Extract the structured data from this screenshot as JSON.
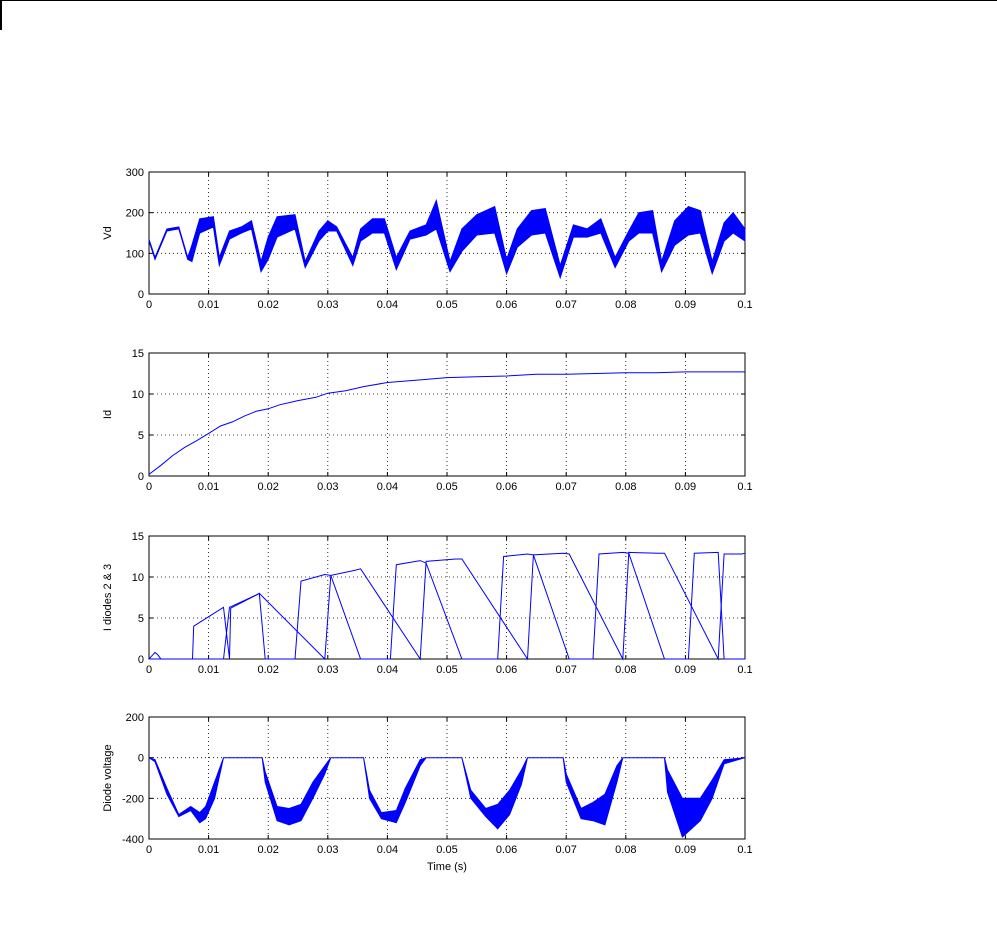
{
  "figure": {
    "background": "#ffffff",
    "line_color": "#0000ff",
    "grid": true
  },
  "chart_data": [
    {
      "type": "line",
      "ylabel": "Vd",
      "xlabel": "",
      "xlim": [
        0,
        0.1
      ],
      "ylim": [
        0,
        300
      ],
      "xticks": [
        "0",
        "0.01",
        "0.02",
        "0.03",
        "0.04",
        "0.05",
        "0.06",
        "0.07",
        "0.08",
        "0.09",
        "0.1"
      ],
      "yticks": [
        "0",
        "100",
        "200",
        "300"
      ],
      "series": [
        {
          "x": [
            0,
            0.001,
            0.003,
            0.005,
            0.0065,
            0.0072,
            0.0085,
            0.0108,
            0.0118,
            0.0135,
            0.0155,
            0.0172,
            0.0188,
            0.02,
            0.0215,
            0.0245,
            0.0262,
            0.0285,
            0.03,
            0.0315,
            0.0342,
            0.0355,
            0.0375,
            0.0395,
            0.0415,
            0.0438,
            0.0465,
            0.0482,
            0.0505,
            0.0525,
            0.055,
            0.058,
            0.06,
            0.0618,
            0.0642,
            0.0665,
            0.069,
            0.0712,
            0.0735,
            0.0758,
            0.0782,
            0.0805,
            0.0822,
            0.0845,
            0.086,
            0.0882,
            0.0905,
            0.0925,
            0.0945,
            0.0965,
            0.098,
            0.1
          ],
          "ymin": [
            130,
            85,
            155,
            160,
            85,
            80,
            150,
            165,
            70,
            135,
            150,
            160,
            55,
            85,
            140,
            160,
            65,
            130,
            155,
            155,
            70,
            130,
            150,
            150,
            60,
            135,
            145,
            160,
            55,
            105,
            145,
            150,
            50,
            115,
            145,
            150,
            40,
            140,
            140,
            150,
            65,
            130,
            150,
            150,
            55,
            120,
            145,
            150,
            50,
            130,
            150,
            130
          ],
          "ymax": [
            135,
            90,
            160,
            165,
            90,
            120,
            185,
            190,
            90,
            155,
            165,
            180,
            80,
            140,
            190,
            195,
            80,
            155,
            180,
            165,
            90,
            160,
            185,
            185,
            90,
            155,
            170,
            230,
            80,
            160,
            195,
            215,
            85,
            160,
            205,
            210,
            70,
            170,
            160,
            185,
            90,
            155,
            200,
            205,
            80,
            180,
            215,
            205,
            80,
            175,
            200,
            160
          ]
        }
      ]
    },
    {
      "type": "line",
      "ylabel": "Id",
      "xlabel": "",
      "xlim": [
        0,
        0.1
      ],
      "ylim": [
        0,
        15
      ],
      "xticks": [
        "0",
        "0.01",
        "0.02",
        "0.03",
        "0.04",
        "0.05",
        "0.06",
        "0.07",
        "0.08",
        "0.09",
        "0.1"
      ],
      "yticks": [
        "0",
        "5",
        "10",
        "15"
      ],
      "series": [
        {
          "x": [
            0,
            0.002,
            0.004,
            0.006,
            0.008,
            0.01,
            0.012,
            0.014,
            0.016,
            0.018,
            0.02,
            0.022,
            0.025,
            0.028,
            0.03,
            0.033,
            0.036,
            0.04,
            0.045,
            0.05,
            0.055,
            0.06,
            0.065,
            0.07,
            0.075,
            0.08,
            0.085,
            0.09,
            0.095,
            0.1
          ],
          "y": [
            0.2,
            1.3,
            2.5,
            3.5,
            4.3,
            5.2,
            6.1,
            6.6,
            7.3,
            7.9,
            8.2,
            8.7,
            9.2,
            9.6,
            10.1,
            10.4,
            10.9,
            11.4,
            11.7,
            12.0,
            12.1,
            12.2,
            12.4,
            12.4,
            12.5,
            12.6,
            12.6,
            12.7,
            12.7,
            12.7
          ]
        }
      ]
    },
    {
      "type": "line",
      "ylabel": "I diodes 2 & 3",
      "xlabel": "",
      "xlim": [
        0,
        0.1
      ],
      "ylim": [
        0,
        15
      ],
      "xticks": [
        "0",
        "0.01",
        "0.02",
        "0.03",
        "0.04",
        "0.05",
        "0.06",
        "0.07",
        "0.08",
        "0.09",
        "0.1"
      ],
      "yticks": [
        "0",
        "5",
        "10",
        "15"
      ],
      "series": [
        {
          "x": [
            0,
            0.0005,
            0.001,
            0.0015,
            0.002,
            0.0073,
            0.0075,
            0.0125,
            0.0135,
            0.0137,
            0.0185,
            0.0195,
            0.0245,
            0.0255,
            0.0295,
            0.0305,
            0.0355,
            0.0405,
            0.0415,
            0.0455,
            0.0465,
            0.0525,
            0.0585,
            0.0595,
            0.0635,
            0.0645,
            0.0705,
            0.0745,
            0.0755,
            0.0795,
            0.0805,
            0.0865,
            0.0905,
            0.0915,
            0.0955,
            0.0965,
            0.1
          ],
          "y": [
            0,
            0.4,
            0.8,
            0.5,
            0,
            0,
            4,
            6.3,
            0,
            6.2,
            8,
            0,
            0,
            9.5,
            10.3,
            10.2,
            0,
            0,
            11.5,
            12,
            11.7,
            0,
            0,
            12.5,
            12.8,
            12.7,
            0,
            0,
            12.8,
            13,
            12.9,
            0,
            0,
            12.9,
            13,
            0,
            0
          ]
        },
        {
          "x": [
            0,
            0.0125,
            0.0135,
            0.018,
            0.0185,
            0.0295,
            0.0305,
            0.0345,
            0.0355,
            0.0455,
            0.0465,
            0.0515,
            0.0525,
            0.0635,
            0.0645,
            0.0695,
            0.0705,
            0.0795,
            0.0805,
            0.0855,
            0.0865,
            0.0955,
            0.0965,
            0.0995,
            0.1
          ],
          "y": [
            0,
            0,
            6.3,
            7.8,
            8,
            0,
            10.2,
            10.8,
            11,
            0,
            11.9,
            12.2,
            12.2,
            0,
            12.7,
            12.9,
            12.8,
            0,
            13,
            12.9,
            12.9,
            0,
            12.8,
            12.8,
            12.9
          ]
        }
      ]
    },
    {
      "type": "line",
      "ylabel": "Diode voltage",
      "xlabel": "Time (s)",
      "xlim": [
        0,
        0.1
      ],
      "ylim": [
        -400,
        200
      ],
      "xticks": [
        "0",
        "0.01",
        "0.02",
        "0.03",
        "0.04",
        "0.05",
        "0.06",
        "0.07",
        "0.08",
        "0.09",
        "0.1"
      ],
      "yticks": [
        "-400",
        "-200",
        "0",
        "200"
      ],
      "series": [
        {
          "x": [
            0,
            0.001,
            0.003,
            0.005,
            0.007,
            0.0085,
            0.0095,
            0.011,
            0.0125,
            0.019,
            0.0195,
            0.0215,
            0.0235,
            0.0255,
            0.0275,
            0.0295,
            0.0305,
            0.036,
            0.037,
            0.039,
            0.0415,
            0.043,
            0.0455,
            0.0465,
            0.0525,
            0.054,
            0.0565,
            0.0585,
            0.0605,
            0.0625,
            0.0635,
            0.0695,
            0.07,
            0.0725,
            0.0745,
            0.0765,
            0.0785,
            0.0795,
            0.0865,
            0.087,
            0.0895,
            0.0925,
            0.0945,
            0.0965,
            0.1
          ],
          "ymin": [
            0,
            -20,
            -180,
            -290,
            -260,
            -320,
            -300,
            -200,
            0,
            0,
            -120,
            -310,
            -330,
            -310,
            -200,
            -80,
            0,
            0,
            -200,
            -300,
            -320,
            -220,
            -40,
            0,
            0,
            -200,
            -290,
            -350,
            -280,
            -130,
            0,
            0,
            -120,
            -300,
            -310,
            -330,
            -120,
            0,
            0,
            -170,
            -390,
            -310,
            -200,
            -30,
            0
          ],
          "ymax": [
            0,
            -10,
            -150,
            -280,
            -240,
            -270,
            -240,
            -120,
            0,
            0,
            -70,
            -240,
            -250,
            -230,
            -120,
            -40,
            0,
            0,
            -160,
            -270,
            -260,
            -150,
            -10,
            0,
            0,
            -160,
            -250,
            -230,
            -160,
            -60,
            0,
            0,
            -80,
            -250,
            -220,
            -180,
            -40,
            0,
            0,
            -60,
            -200,
            -200,
            -110,
            -10,
            0
          ]
        }
      ]
    }
  ]
}
